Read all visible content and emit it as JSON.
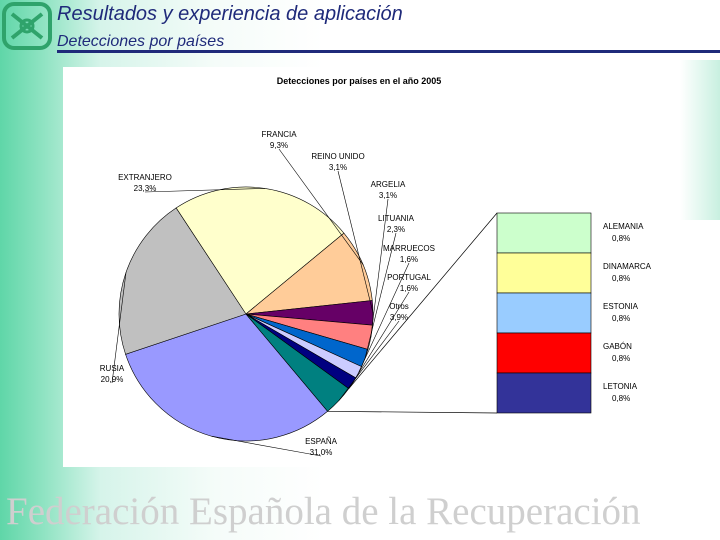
{
  "slide": {
    "title": "Resultados y experiencia de aplicación",
    "subtitle": "Detecciones por países",
    "footer": "Federación Española de la Recuperación"
  },
  "colors": {
    "accent": "#1f2a7a",
    "logo": "#2fa36b"
  },
  "chart_data": {
    "type": "pie",
    "title": "Detecciones por países en el año 2005",
    "slices": [
      {
        "label": "ESPAÑA",
        "value": 31.0,
        "display": "31,0%",
        "color": "#9999ff"
      },
      {
        "label": "RUSIA",
        "value": 20.9,
        "display": "20,9%",
        "color": "#c0c0c0"
      },
      {
        "label": "EXTRANJERO",
        "value": 23.3,
        "display": "23,3%",
        "color": "#ffffcc"
      },
      {
        "label": "FRANCIA",
        "value": 9.3,
        "display": "9,3%",
        "color": "#ffcc99"
      },
      {
        "label": "REINO UNIDO",
        "value": 3.1,
        "display": "3,1%",
        "color": "#660066"
      },
      {
        "label": "ARGELIA",
        "value": 3.1,
        "display": "3,1%",
        "color": "#ff8080"
      },
      {
        "label": "LITUANIA",
        "value": 2.3,
        "display": "2,3%",
        "color": "#0066cc"
      },
      {
        "label": "MARRUECOS",
        "value": 1.6,
        "display": "1,6%",
        "color": "#ccccff"
      },
      {
        "label": "PORTUGAL",
        "value": 1.6,
        "display": "1,6%",
        "color": "#000080"
      },
      {
        "label": "Otros",
        "value": 3.9,
        "display": "3,9%",
        "color": "#008080"
      }
    ],
    "breakdown": [
      {
        "label": "ALEMANIA",
        "value": 0.8,
        "display": "0,8%",
        "color": "#ccffcc"
      },
      {
        "label": "DINAMARCA",
        "value": 0.8,
        "display": "0,8%",
        "color": "#ffff99"
      },
      {
        "label": "ESTONIA",
        "value": 0.8,
        "display": "0,8%",
        "color": "#99ccff"
      },
      {
        "label": "GABÓN",
        "value": 0.8,
        "display": "0,8%",
        "color": "#ff0000"
      },
      {
        "label": "LETONIA",
        "value": 0.8,
        "display": "0,8%",
        "color": "#333399"
      }
    ],
    "breakdown_of": "Otros"
  }
}
